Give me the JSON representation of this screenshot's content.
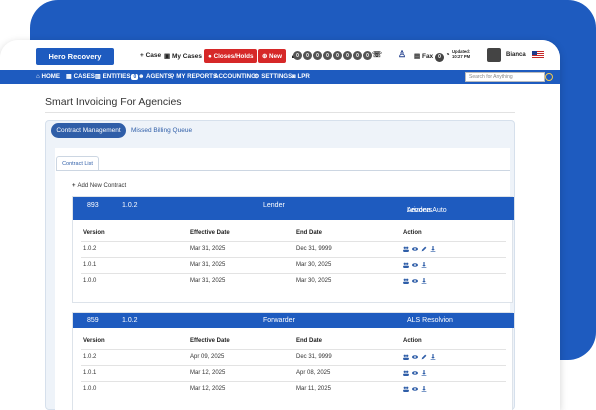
{
  "header": {
    "brand": "Hero Recovery",
    "case_label": "+ Case",
    "my_cases_label": "My Cases",
    "closes_holds_label": "Closes/Holds",
    "new_label": "New",
    "fax_label": "Fax",
    "fax_count": "0",
    "updated_label": "Updated:",
    "updated_time": "10:27 PM",
    "user_name": "Bianca",
    "status_dots": [
      "0",
      "0",
      "0",
      "0",
      "0",
      "0",
      "0",
      "0"
    ]
  },
  "nav": {
    "home": "HOME",
    "cases": "CASES",
    "entities": "ENTITIES",
    "entities_badge": "0",
    "agents": "AGENTS",
    "my_reports": "MY REPORTS",
    "accounting": "ACCOUNTING",
    "settings": "SETTINGS",
    "lpr": "LPR",
    "search_placeholder": "Search for Anything"
  },
  "page": {
    "title": "Smart Invoicing For Agencies",
    "tab_active": "Contract Management",
    "tab_other": "Missed Billing Queue",
    "subtab": "Contract List",
    "add_contract": "Add New Contract"
  },
  "contracts": [
    {
      "id": "893",
      "version": "1.0.2",
      "type": "Lender",
      "name_line1": "Arizona Auto",
      "name_line2": "Lenders",
      "headers": [
        "Version",
        "Effective Date",
        "End Date",
        "Action"
      ],
      "rows": [
        {
          "version": "1.0.2",
          "effective": "Mar 31, 2025",
          "end": "Dec 31, 9999",
          "edit": true
        },
        {
          "version": "1.0.1",
          "effective": "Mar 31, 2025",
          "end": "Mar 30, 2025",
          "edit": false
        },
        {
          "version": "1.0.0",
          "effective": "Mar 31, 2025",
          "end": "Mar 30, 2025",
          "edit": false
        }
      ]
    },
    {
      "id": "859",
      "version": "1.0.2",
      "type": "Forwarder",
      "name_line1": "ALS Resolvion",
      "name_line2": "",
      "headers": [
        "Version",
        "Effective Date",
        "End Date",
        "Action"
      ],
      "rows": [
        {
          "version": "1.0.2",
          "effective": "Apr 09, 2025",
          "end": "Dec 31, 9999",
          "edit": true
        },
        {
          "version": "1.0.1",
          "effective": "Mar 12, 2025",
          "end": "Apr 08, 2025",
          "edit": false
        },
        {
          "version": "1.0.0",
          "effective": "Mar 12, 2025",
          "end": "Mar 11, 2025",
          "edit": false
        }
      ]
    }
  ],
  "colors": {
    "primary": "#1e5bbf",
    "danger": "#d62828"
  }
}
